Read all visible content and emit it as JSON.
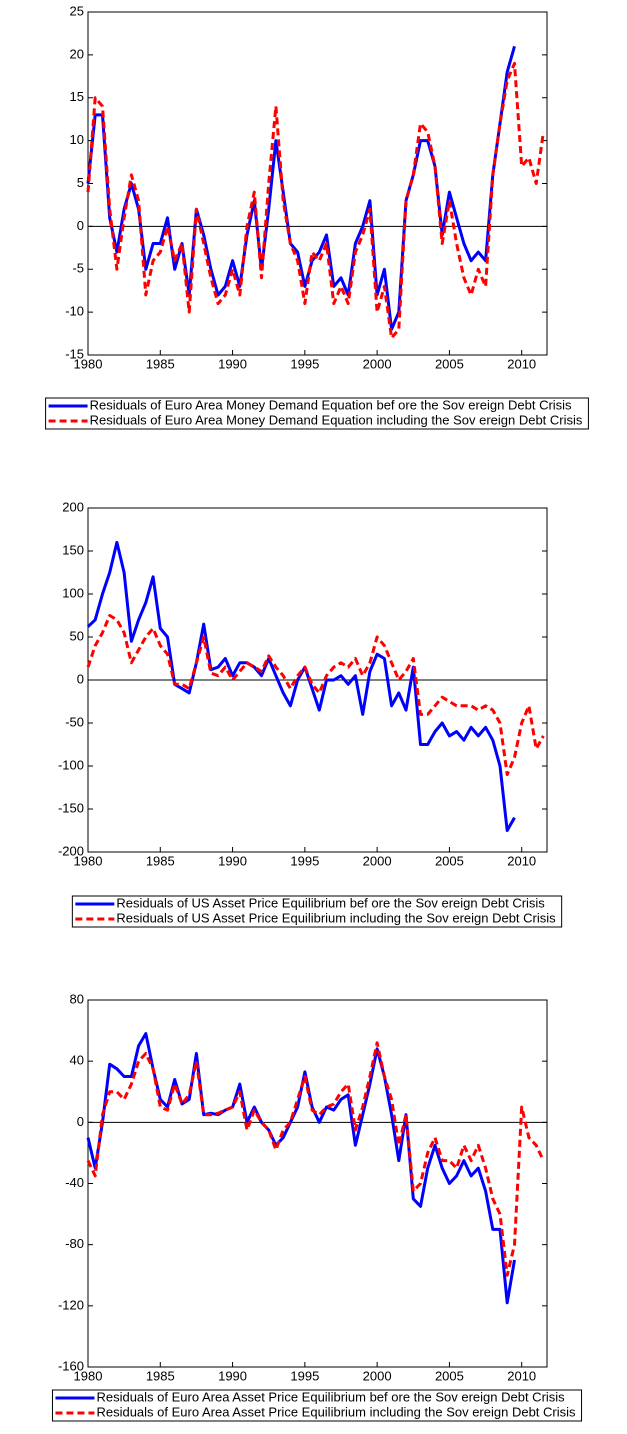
{
  "chart_data": [
    {
      "type": "line",
      "x": [
        1980,
        1980.5,
        1981,
        1981.5,
        1982,
        1982.5,
        1983,
        1983.5,
        1984,
        1984.5,
        1985,
        1985.5,
        1986,
        1986.5,
        1987,
        1987.5,
        1988,
        1988.5,
        1989,
        1989.5,
        1990,
        1990.5,
        1991,
        1991.5,
        1992,
        1992.5,
        1993,
        1993.5,
        1994,
        1994.5,
        1995,
        1995.5,
        1996,
        1996.5,
        1997,
        1997.5,
        1998,
        1998.5,
        1999,
        1999.5,
        2000,
        2000.5,
        2001,
        2001.5,
        2002,
        2002.5,
        2003,
        2003.5,
        2004,
        2004.5,
        2005,
        2005.5,
        2006,
        2006.5,
        2007,
        2007.5,
        2008,
        2008.5,
        2009,
        2009.5,
        2010,
        2010.5,
        2011,
        2011.5
      ],
      "series": [
        {
          "name": "Residuals of  Euro Area Money  Demand Equation bef ore the Sov ereign Debt Crisis",
          "color": "#0000ff",
          "style": "solid",
          "values": [
            5,
            13,
            13,
            1,
            -3,
            2,
            5,
            2,
            -5,
            -2,
            -2,
            1,
            -5,
            -2,
            -8,
            2,
            -1,
            -5,
            -8,
            -7,
            -4,
            -7,
            -1,
            3,
            -5,
            2,
            10,
            4,
            -2,
            -3,
            -7,
            -4,
            -3,
            -1,
            -7,
            -6,
            -8,
            -2,
            0,
            3,
            -8,
            -5,
            -12,
            -10,
            3,
            6,
            10,
            10,
            7,
            -1,
            4,
            1,
            -2,
            -4,
            -3,
            -4,
            6,
            12,
            18,
            21,
            null,
            null,
            null,
            null
          ]
        },
        {
          "name": "Residuals of  Euro Area Money  Demand Equation including the Sov ereign Debt  Crisis",
          "color": "#ff0000",
          "style": "dashed",
          "values": [
            4,
            15,
            14,
            2,
            -5,
            1,
            6,
            3,
            -8,
            -4,
            -3,
            0,
            -4,
            -2,
            -10,
            2,
            -2,
            -6,
            -9,
            -8,
            -5,
            -8,
            0,
            4,
            -6,
            5,
            14,
            3,
            -2,
            -4,
            -9,
            -3,
            -4,
            -2,
            -9,
            -7,
            -9,
            -3,
            -1,
            2,
            -10,
            -7,
            -13,
            -12,
            3,
            6,
            12,
            11,
            7,
            -2,
            3,
            -2,
            -6,
            -8,
            -5,
            -7,
            6,
            12,
            17,
            19,
            7,
            8,
            5,
            11
          ]
        }
      ],
      "xlim": [
        1980,
        2011.75
      ],
      "xticks": [
        1980,
        1985,
        1990,
        1995,
        2000,
        2005,
        2010
      ],
      "ylim": [
        -15,
        25
      ],
      "yticks": [
        -15,
        -10,
        -5,
        0,
        5,
        10,
        15,
        20,
        25
      ],
      "hline": 0,
      "legend": "bottom"
    },
    {
      "type": "line",
      "x": [
        1980,
        1980.5,
        1981,
        1981.5,
        1982,
        1982.5,
        1983,
        1983.5,
        1984,
        1984.5,
        1985,
        1985.5,
        1986,
        1986.5,
        1987,
        1987.5,
        1988,
        1988.5,
        1989,
        1989.5,
        1990,
        1990.5,
        1991,
        1991.5,
        1992,
        1992.5,
        1993,
        1993.5,
        1994,
        1994.5,
        1995,
        1995.5,
        1996,
        1996.5,
        1997,
        1997.5,
        1998,
        1998.5,
        1999,
        1999.5,
        2000,
        2000.5,
        2001,
        2001.5,
        2002,
        2002.5,
        2003,
        2003.5,
        2004,
        2004.5,
        2005,
        2005.5,
        2006,
        2006.5,
        2007,
        2007.5,
        2008,
        2008.5,
        2009,
        2009.5,
        2010,
        2010.5,
        2011,
        2011.5
      ],
      "series": [
        {
          "name": "Residuals of  US Asset Price Equilibrium bef ore the Sov ereign Debt Crisis",
          "color": "#0000ff",
          "style": "solid",
          "values": [
            62,
            70,
            100,
            125,
            160,
            125,
            45,
            70,
            90,
            120,
            60,
            50,
            -5,
            -10,
            -15,
            20,
            65,
            12,
            15,
            25,
            5,
            20,
            20,
            15,
            5,
            25,
            5,
            -15,
            -30,
            0,
            15,
            -10,
            -35,
            0,
            0,
            5,
            -5,
            5,
            -40,
            10,
            30,
            25,
            -30,
            -15,
            -35,
            15,
            -75,
            -75,
            -60,
            -50,
            -65,
            -60,
            -70,
            -55,
            -65,
            -55,
            -70,
            -100,
            -175,
            -160,
            null,
            null,
            null,
            null
          ]
        },
        {
          "name": "Residuals of  US Asset Price Equilibrium including the Sov ereign Debt  Crisis",
          "color": "#ff0000",
          "style": "dashed",
          "values": [
            15,
            40,
            55,
            75,
            70,
            55,
            20,
            35,
            50,
            60,
            40,
            30,
            -5,
            -5,
            -10,
            20,
            50,
            8,
            5,
            15,
            0,
            10,
            20,
            15,
            10,
            28,
            15,
            5,
            -10,
            5,
            15,
            -5,
            -15,
            5,
            15,
            20,
            15,
            25,
            5,
            20,
            50,
            40,
            20,
            0,
            10,
            25,
            -40,
            -40,
            -30,
            -20,
            -25,
            -30,
            -30,
            -30,
            -35,
            -30,
            -35,
            -50,
            -110,
            -90,
            -50,
            -30,
            -80,
            -65
          ]
        }
      ],
      "xlim": [
        1980,
        2011.75
      ],
      "xticks": [
        1980,
        1985,
        1990,
        1995,
        2000,
        2005,
        2010
      ],
      "ylim": [
        -200,
        200
      ],
      "yticks": [
        -200,
        -150,
        -100,
        -50,
        0,
        50,
        100,
        150,
        200
      ],
      "hline": 0,
      "legend": "bottom"
    },
    {
      "type": "line",
      "x": [
        1980,
        1980.5,
        1981,
        1981.5,
        1982,
        1982.5,
        1983,
        1983.5,
        1984,
        1984.5,
        1985,
        1985.5,
        1986,
        1986.5,
        1987,
        1987.5,
        1988,
        1988.5,
        1989,
        1989.5,
        1990,
        1990.5,
        1991,
        1991.5,
        1992,
        1992.5,
        1993,
        1993.5,
        1994,
        1994.5,
        1995,
        1995.5,
        1996,
        1996.5,
        1997,
        1997.5,
        1998,
        1998.5,
        1999,
        1999.5,
        2000,
        2000.5,
        2001,
        2001.5,
        2002,
        2002.5,
        2003,
        2003.5,
        2004,
        2004.5,
        2005,
        2005.5,
        2006,
        2006.5,
        2007,
        2007.5,
        2008,
        2008.5,
        2009,
        2009.5,
        2010,
        2010.5,
        2011,
        2011.5
      ],
      "series": [
        {
          "name": "Residuals of  Euro Area Asset Price Equilibrium bef ore the Sov ereign Debt Crisis",
          "color": "#0000ff",
          "style": "solid",
          "values": [
            -10,
            -30,
            0,
            38,
            35,
            30,
            30,
            50,
            58,
            35,
            15,
            10,
            28,
            12,
            15,
            45,
            5,
            6,
            5,
            8,
            10,
            25,
            0,
            10,
            0,
            -5,
            -15,
            -10,
            0,
            10,
            33,
            10,
            0,
            10,
            8,
            15,
            18,
            -15,
            5,
            25,
            48,
            30,
            5,
            -25,
            5,
            -50,
            -55,
            -30,
            -15,
            -30,
            -40,
            -35,
            -25,
            -35,
            -30,
            -45,
            -70,
            -70,
            -118,
            -90,
            null,
            null,
            null,
            null
          ]
        },
        {
          "name": "Residuals of  Euro Area Asset Price Equilibrium including the Sov ereign Debt  Crisis",
          "color": "#ff0000",
          "style": "dashed",
          "values": [
            -25,
            -35,
            5,
            20,
            20,
            15,
            25,
            40,
            45,
            35,
            10,
            8,
            25,
            12,
            18,
            40,
            5,
            5,
            6,
            8,
            10,
            20,
            -5,
            8,
            0,
            -5,
            -18,
            -5,
            0,
            15,
            30,
            8,
            5,
            10,
            12,
            20,
            25,
            -5,
            10,
            30,
            52,
            30,
            15,
            -15,
            5,
            -45,
            -40,
            -20,
            -10,
            -25,
            -25,
            -30,
            -15,
            -25,
            -15,
            -30,
            -50,
            -60,
            -100,
            -80,
            10,
            -10,
            -15,
            -25
          ]
        }
      ],
      "xlim": [
        1980,
        2011.75
      ],
      "xticks": [
        1980,
        1985,
        1990,
        1995,
        2000,
        2005,
        2010
      ],
      "ylim": [
        -160,
        80
      ],
      "yticks": [
        -160,
        -120,
        -80,
        -40,
        0,
        40,
        80
      ],
      "hline": 0,
      "legend": "bottom"
    }
  ]
}
